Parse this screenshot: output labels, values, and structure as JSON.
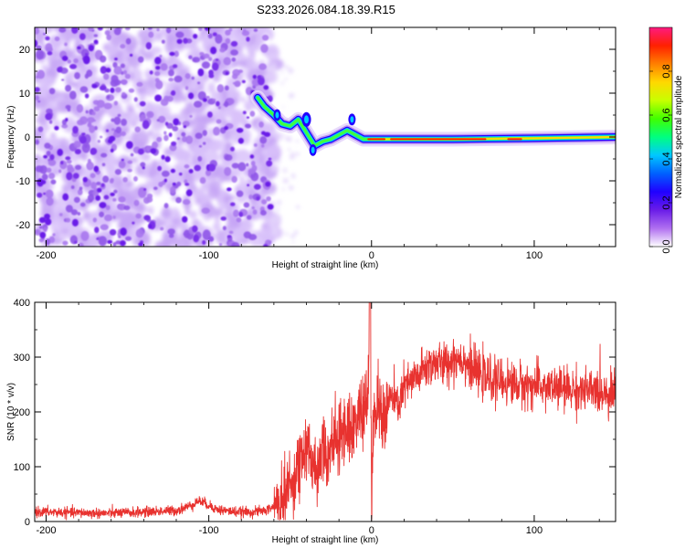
{
  "title": "S233.2026.084.18.39.R15",
  "chart_data": [
    {
      "type": "heatmap",
      "name": "spectrogram",
      "xlabel": "Height of straight line (km)",
      "ylabel": "Frequency (Hz)",
      "xlim": [
        -207,
        150
      ],
      "ylim": [
        -25,
        25
      ],
      "xticks": [
        -200,
        -100,
        0,
        100
      ],
      "yticks": [
        -20,
        -10,
        0,
        10,
        20
      ],
      "noise_region_x": [
        -207,
        -62
      ],
      "trace": [
        {
          "x": -70,
          "y": 9
        },
        {
          "x": -66,
          "y": 7
        },
        {
          "x": -60,
          "y": 5
        },
        {
          "x": -55,
          "y": 3
        },
        {
          "x": -50,
          "y": 2.5
        },
        {
          "x": -45,
          "y": 4
        },
        {
          "x": -40,
          "y": 1
        },
        {
          "x": -35,
          "y": -2
        },
        {
          "x": -30,
          "y": -1
        },
        {
          "x": -25,
          "y": -0.5
        },
        {
          "x": -20,
          "y": 0.5
        },
        {
          "x": -15,
          "y": 1.5
        },
        {
          "x": -10,
          "y": 0.5
        },
        {
          "x": -5,
          "y": -0.5
        },
        {
          "x": 0,
          "y": -0.5
        },
        {
          "x": 20,
          "y": -0.5
        },
        {
          "x": 50,
          "y": -0.5
        },
        {
          "x": 100,
          "y": -0.3
        },
        {
          "x": 150,
          "y": 0
        }
      ],
      "colorbar": {
        "label": "Normalized spectral amplitude",
        "range": [
          0,
          1
        ],
        "ticks": [
          "0.0",
          "0.2",
          "0.4",
          "0.6",
          "0.8"
        ],
        "colors": [
          "#ffffff",
          "#b070f0",
          "#6a1ce8",
          "#2000ff",
          "#0060ff",
          "#00c8ff",
          "#00ff80",
          "#40ff00",
          "#c8ff00",
          "#ffd800",
          "#ff8000",
          "#ff2000",
          "#ff1a80"
        ]
      }
    },
    {
      "type": "line",
      "name": "snr",
      "xlabel": "Height of straight line (km)",
      "ylabel": "SNR (10 * v/v)",
      "xlim": [
        -207,
        150
      ],
      "ylim": [
        0,
        400
      ],
      "xticks": [
        -200,
        -100,
        0,
        100
      ],
      "yticks": [
        0,
        100,
        200,
        300,
        400
      ],
      "color": "#e8322f",
      "series": [
        {
          "name": "SNR",
          "points": [
            [
              -207,
              18
            ],
            [
              -195,
              17
            ],
            [
              -180,
              16
            ],
            [
              -165,
              15
            ],
            [
              -150,
              16
            ],
            [
              -135,
              18
            ],
            [
              -120,
              20
            ],
            [
              -112,
              28
            ],
            [
              -106,
              38
            ],
            [
              -100,
              30
            ],
            [
              -95,
              22
            ],
            [
              -85,
              18
            ],
            [
              -75,
              17
            ],
            [
              -65,
              20
            ],
            [
              -55,
              35
            ],
            [
              -48,
              80
            ],
            [
              -43,
              115
            ],
            [
              -39,
              130
            ],
            [
              -36,
              108
            ],
            [
              -33,
              95
            ],
            [
              -30,
              150
            ],
            [
              -27,
              115
            ],
            [
              -24,
              155
            ],
            [
              -20,
              140
            ],
            [
              -16,
              180
            ],
            [
              -13,
              165
            ],
            [
              -10,
              175
            ],
            [
              -7,
              205
            ],
            [
              -4,
              195
            ],
            [
              -2,
              230
            ],
            [
              -1,
              400
            ],
            [
              0,
              55
            ],
            [
              2,
              195
            ],
            [
              4,
              210
            ],
            [
              8,
              190
            ],
            [
              12,
              230
            ],
            [
              16,
              210
            ],
            [
              20,
              245
            ],
            [
              25,
              255
            ],
            [
              30,
              270
            ],
            [
              35,
              285
            ],
            [
              40,
              290
            ],
            [
              45,
              285
            ],
            [
              50,
              295
            ],
            [
              55,
              300
            ],
            [
              60,
              285
            ],
            [
              65,
              270
            ],
            [
              70,
              262
            ],
            [
              80,
              255
            ],
            [
              90,
              250
            ],
            [
              100,
              248
            ],
            [
              110,
              245
            ],
            [
              120,
              242
            ],
            [
              130,
              238
            ],
            [
              140,
              238
            ],
            [
              150,
              236
            ]
          ]
        }
      ]
    }
  ]
}
